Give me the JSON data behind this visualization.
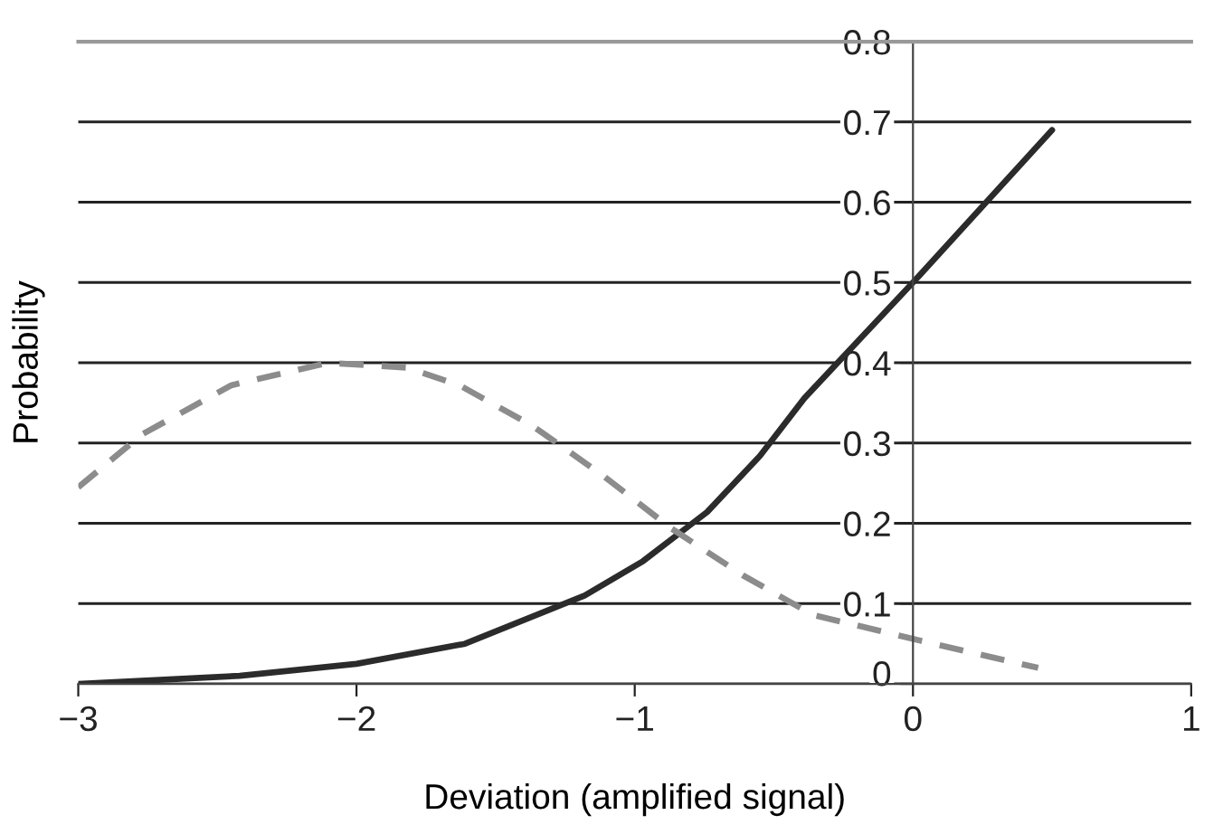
{
  "chart_data": {
    "type": "line",
    "xlabel": "Deviation (amplified signal)",
    "ylabel": "Probability",
    "xlim": [
      -3,
      1
    ],
    "xticks": [
      {
        "value": -3,
        "label": "−3"
      },
      {
        "value": -2,
        "label": "−2"
      },
      {
        "value": -1,
        "label": "−1"
      },
      0,
      1
    ],
    "ylim": [
      0,
      0.8
    ],
    "yticks": [
      0,
      0.1,
      0.2,
      0.3,
      0.4,
      0.5,
      0.6,
      0.7,
      0.8
    ],
    "grid": "y",
    "marker": "none",
    "series": [
      {
        "color": "#2b2b2b",
        "line_style": "solid",
        "x": [
          -3,
          -2.42,
          -2.0,
          -1.61,
          -1.18,
          -0.97,
          -0.74,
          -0.55,
          -0.39,
          0,
          0.5
        ],
        "values": [
          0,
          0.01,
          0.025,
          0.05,
          0.11,
          0.153,
          0.214,
          0.284,
          0.356,
          0.5,
          0.69
        ]
      },
      {
        "color": "#8c8c8c",
        "line_style": "dashed",
        "x": [
          -3,
          -2.77,
          -2.45,
          -2.1,
          -1.82,
          -1.63,
          -1.37,
          -1.12,
          -0.87,
          -0.61,
          -0.36,
          0,
          0.45
        ],
        "values": [
          0.245,
          0.311,
          0.372,
          0.4,
          0.394,
          0.372,
          0.322,
          0.261,
          0.194,
          0.135,
          0.086,
          0.056,
          0.02
        ]
      }
    ]
  }
}
